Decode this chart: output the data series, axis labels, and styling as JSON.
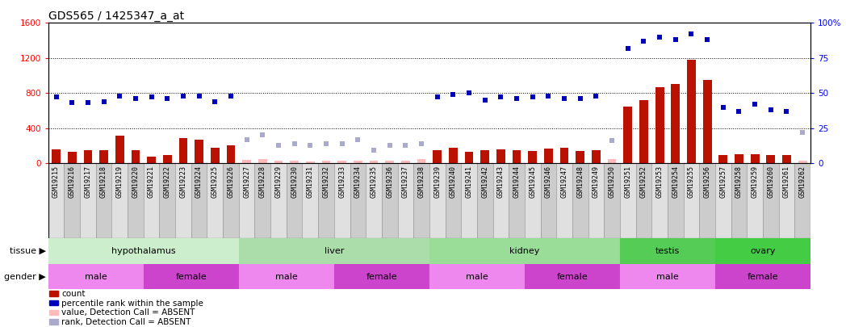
{
  "title": "GDS565 / 1425347_a_at",
  "samples": [
    "GSM19215",
    "GSM19216",
    "GSM19217",
    "GSM19218",
    "GSM19219",
    "GSM19220",
    "GSM19221",
    "GSM19222",
    "GSM19223",
    "GSM19224",
    "GSM19225",
    "GSM19226",
    "GSM19227",
    "GSM19228",
    "GSM19229",
    "GSM19230",
    "GSM19231",
    "GSM19232",
    "GSM19233",
    "GSM19234",
    "GSM19235",
    "GSM19236",
    "GSM19237",
    "GSM19238",
    "GSM19239",
    "GSM19240",
    "GSM19241",
    "GSM19242",
    "GSM19243",
    "GSM19244",
    "GSM19245",
    "GSM19246",
    "GSM19247",
    "GSM19248",
    "GSM19249",
    "GSM19250",
    "GSM19251",
    "GSM19252",
    "GSM19253",
    "GSM19254",
    "GSM19255",
    "GSM19256",
    "GSM19257",
    "GSM19258",
    "GSM19259",
    "GSM19260",
    "GSM19261",
    "GSM19262"
  ],
  "values": [
    155,
    130,
    145,
    150,
    310,
    150,
    70,
    95,
    290,
    265,
    175,
    205,
    35,
    50,
    30,
    25,
    20,
    30,
    25,
    30,
    25,
    25,
    25,
    45,
    150,
    175,
    130,
    145,
    155,
    145,
    140,
    165,
    175,
    140,
    145,
    45,
    650,
    720,
    870,
    900,
    1180,
    950,
    90,
    100,
    105,
    90,
    95,
    30
  ],
  "detection": [
    "P",
    "P",
    "P",
    "P",
    "P",
    "P",
    "P",
    "P",
    "P",
    "P",
    "P",
    "P",
    "A",
    "A",
    "A",
    "A",
    "A",
    "A",
    "A",
    "A",
    "A",
    "A",
    "A",
    "A",
    "P",
    "P",
    "P",
    "P",
    "P",
    "P",
    "P",
    "P",
    "P",
    "P",
    "P",
    "A",
    "P",
    "P",
    "P",
    "P",
    "P",
    "P",
    "P",
    "P",
    "P",
    "P",
    "P",
    "A"
  ],
  "percentile_rank": [
    47,
    43,
    43,
    44,
    48,
    46,
    47,
    46,
    48,
    48,
    44,
    48,
    17,
    20,
    13,
    14,
    13,
    14,
    14,
    17,
    9,
    13,
    13,
    14,
    47,
    49,
    50,
    45,
    47,
    46,
    47,
    48,
    46,
    46,
    48,
    16,
    82,
    87,
    90,
    88,
    92,
    88,
    40,
    37,
    42,
    38,
    37,
    22
  ],
  "tissues": [
    {
      "name": "hypothalamus",
      "start": 0,
      "end": 11,
      "color": "#cceecc"
    },
    {
      "name": "liver",
      "start": 12,
      "end": 23,
      "color": "#aaddaa"
    },
    {
      "name": "kidney",
      "start": 24,
      "end": 35,
      "color": "#99dd99"
    },
    {
      "name": "testis",
      "start": 36,
      "end": 41,
      "color": "#55cc55"
    },
    {
      "name": "ovary",
      "start": 42,
      "end": 47,
      "color": "#44cc44"
    }
  ],
  "genders": [
    {
      "name": "male",
      "start": 0,
      "end": 5,
      "color": "#ee88ee"
    },
    {
      "name": "female",
      "start": 6,
      "end": 11,
      "color": "#cc44cc"
    },
    {
      "name": "male",
      "start": 12,
      "end": 17,
      "color": "#ee88ee"
    },
    {
      "name": "female",
      "start": 18,
      "end": 23,
      "color": "#cc44cc"
    },
    {
      "name": "male",
      "start": 24,
      "end": 29,
      "color": "#ee88ee"
    },
    {
      "name": "female",
      "start": 30,
      "end": 35,
      "color": "#cc44cc"
    },
    {
      "name": "male",
      "start": 36,
      "end": 41,
      "color": "#ee88ee"
    },
    {
      "name": "female",
      "start": 42,
      "end": 47,
      "color": "#cc44cc"
    }
  ],
  "ylim_left": [
    0,
    1600
  ],
  "ylim_right": [
    0,
    100
  ],
  "yticks_left": [
    0,
    400,
    800,
    1200,
    1600
  ],
  "yticks_right": [
    0,
    25,
    50,
    75,
    100
  ],
  "ytick_right_labels": [
    "0",
    "25",
    "50",
    "75",
    "100%"
  ],
  "color_present_bar": "#bb1100",
  "color_absent_bar": "#ffbbbb",
  "color_present_rank": "#0000bb",
  "color_absent_rank": "#aaaacc",
  "bar_width": 0.55,
  "title_fontsize": 10,
  "tick_fontsize": 6.0,
  "label_fontsize": 8,
  "legend_fontsize": 7.5
}
